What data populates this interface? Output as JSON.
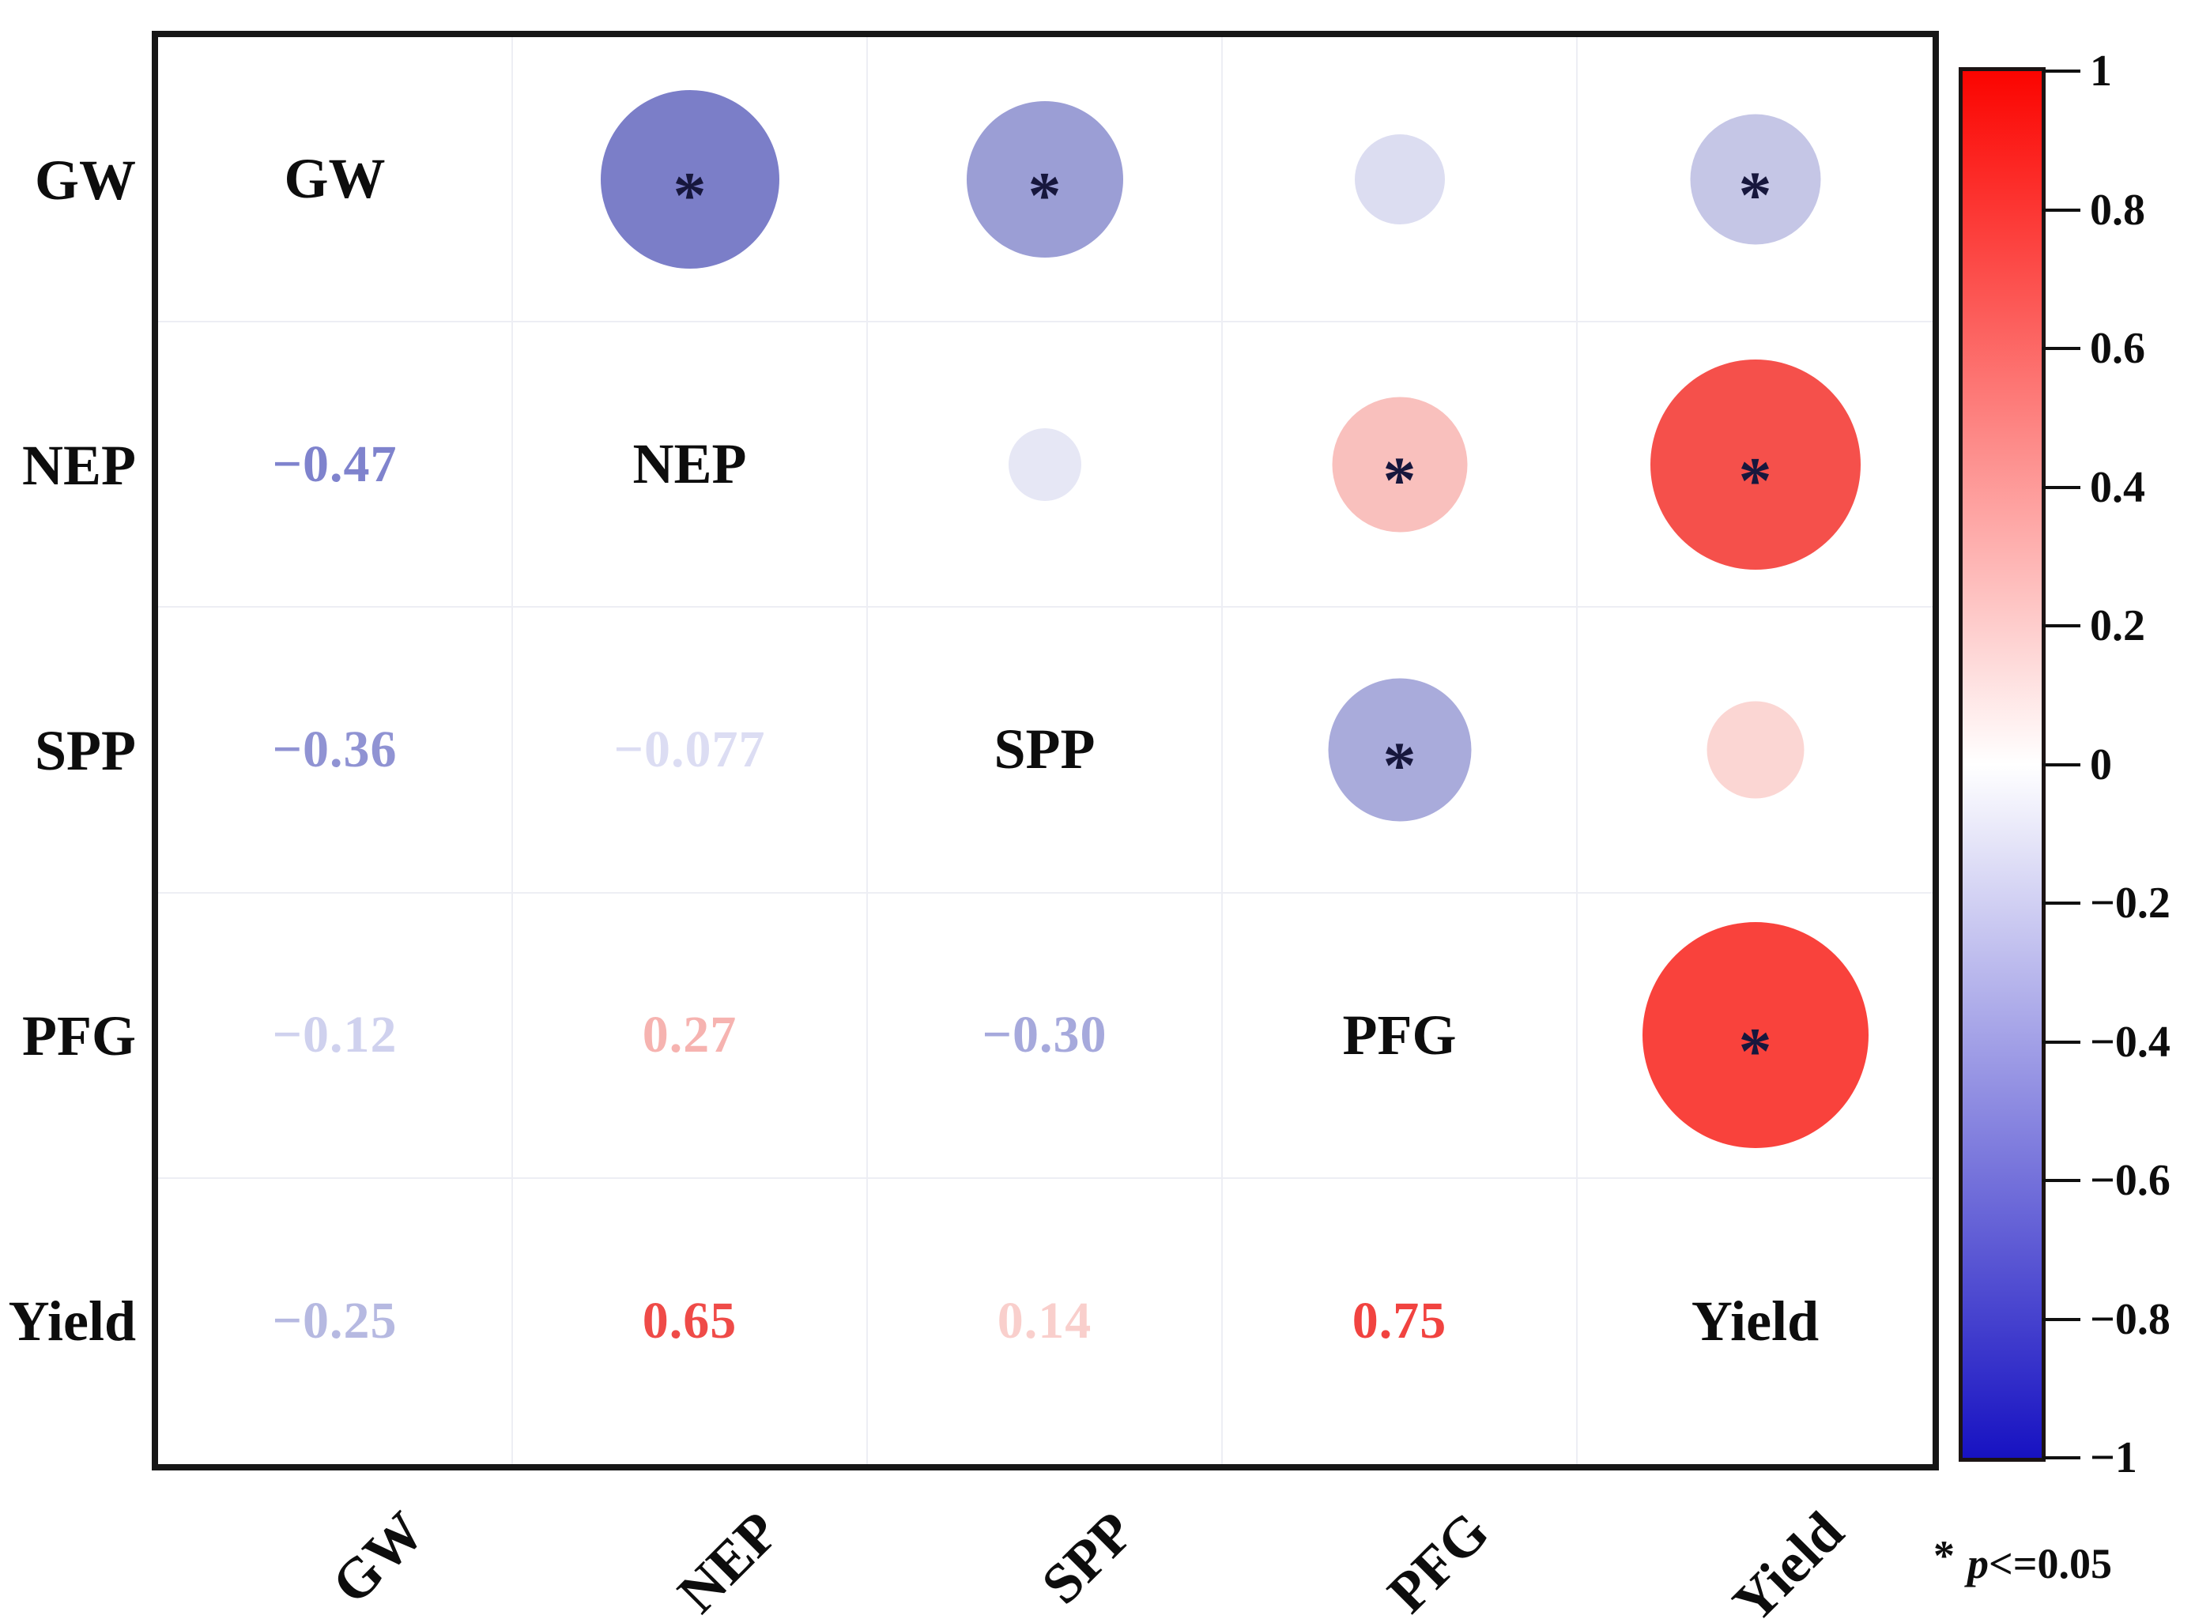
{
  "chart_data": {
    "type": "heatmap",
    "subtype": "correlation_matrix_corrplot",
    "title": "",
    "variables": [
      "GW",
      "NEP",
      "SPP",
      "PFG",
      "Yield"
    ],
    "layout_hint": {
      "upper_triangle": "circles, area proportional to |r|, color from blue (negative) to red (positive)",
      "diagonal": "variable names",
      "lower_triangle": "correlation coefficient values colored by same scale",
      "grid": "light gray cell grid inside thick black border",
      "legend_position": "colorbar right side, significance note bottom right"
    },
    "correlations": [
      {
        "var_a": "GW",
        "var_b": "NEP",
        "a": 0,
        "b": 1,
        "r": -0.47,
        "label": "−0.47",
        "significant": true,
        "circle_color": "#7b7ec8",
        "text_color": "#7f83cd"
      },
      {
        "var_a": "GW",
        "var_b": "SPP",
        "a": 0,
        "b": 2,
        "r": -0.36,
        "label": "−0.36",
        "significant": true,
        "circle_color": "#9b9ed5",
        "text_color": "#9093d3"
      },
      {
        "var_a": "GW",
        "var_b": "PFG",
        "a": 0,
        "b": 3,
        "r": -0.12,
        "label": "−0.12",
        "significant": false,
        "circle_color": "#dcddf1",
        "text_color": "#cfd1ee"
      },
      {
        "var_a": "GW",
        "var_b": "Yield",
        "a": 0,
        "b": 4,
        "r": -0.25,
        "label": "−0.25",
        "significant": true,
        "circle_color": "#c5c6e6",
        "text_color": "#b6b9e1"
      },
      {
        "var_a": "NEP",
        "var_b": "SPP",
        "a": 1,
        "b": 2,
        "r": -0.077,
        "label": "−0.077",
        "significant": false,
        "circle_color": "#e6e7f5",
        "text_color": "#dcddf3"
      },
      {
        "var_a": "NEP",
        "var_b": "PFG",
        "a": 1,
        "b": 3,
        "r": 0.27,
        "label": "0.27",
        "significant": true,
        "circle_color": "#f9c0bd",
        "text_color": "#f6b3b0"
      },
      {
        "var_a": "NEP",
        "var_b": "Yield",
        "a": 1,
        "b": 4,
        "r": 0.65,
        "label": "0.65",
        "significant": true,
        "circle_color": "#f5504b",
        "text_color": "#ef4b48"
      },
      {
        "var_a": "SPP",
        "var_b": "PFG",
        "a": 2,
        "b": 3,
        "r": -0.3,
        "label": "−0.30",
        "significant": true,
        "circle_color": "#a9abdb",
        "text_color": "#a6a9dc"
      },
      {
        "var_a": "SPP",
        "var_b": "Yield",
        "a": 2,
        "b": 4,
        "r": 0.14,
        "label": "0.14",
        "significant": false,
        "circle_color": "#fbd6d3",
        "text_color": "#f9cfcc"
      },
      {
        "var_a": "PFG",
        "var_b": "Yield",
        "a": 3,
        "b": 4,
        "r": 0.75,
        "label": "0.75",
        "significant": true,
        "circle_color": "#f9423c",
        "text_color": "#f14340"
      }
    ],
    "significance_marker": "*",
    "axis": {
      "rows": [
        "GW",
        "NEP",
        "SPP",
        "PFG",
        "Yield"
      ],
      "cols": [
        "GW",
        "NEP",
        "SPP",
        "PFG",
        "Yield"
      ]
    },
    "colorbar": {
      "min": -1,
      "max": 1,
      "tick_labels": [
        "1",
        "0.8",
        "0.6",
        "0.4",
        "0.2",
        "0",
        "−0.2",
        "−0.4",
        "−0.6",
        "−0.8",
        "−1"
      ],
      "top_color": "#fb0400",
      "mid_color": "#ffffff",
      "bottom_color": "#1712c2"
    },
    "legend_note": {
      "star": "*",
      "p": "p",
      "condition": "<=0.05"
    }
  },
  "colors": {
    "grid_line": "#edeef4",
    "matrix_border": "#161616",
    "asterisk": "#17173d",
    "label_text": "#0d0d0d"
  }
}
